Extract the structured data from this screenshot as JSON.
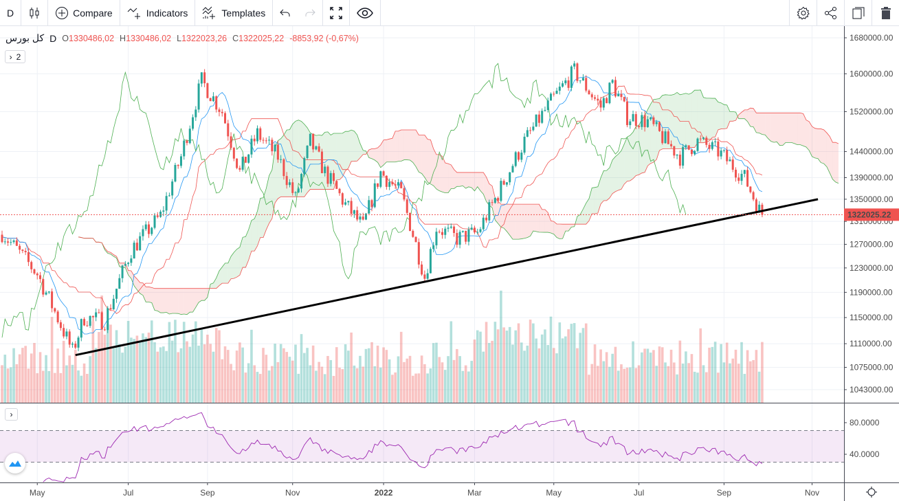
{
  "toolbar": {
    "interval": "D",
    "compare": "Compare",
    "indicators": "Indicators",
    "templates": "Templates"
  },
  "legend": {
    "symbol": "کل بورس",
    "interval": "D",
    "o_label": "O",
    "o": "1330486,02",
    "h_label": "H",
    "h": "1330486,02",
    "l_label": "L",
    "l": "1322023,26",
    "c_label": "C",
    "c": "1322025,22",
    "change": "-8853,92 (-0,67%)",
    "collapsed_count": "2"
  },
  "colors": {
    "up": "#26a69a",
    "down": "#ef5350",
    "tenkan": "#2196f3",
    "kijun": "#ef5350",
    "chikou": "#4caf50",
    "rsi": "#9c27b0"
  },
  "chart_data": {
    "type": "candlestick",
    "symbol": "کل بورس",
    "scale": "log",
    "price_ticks": [
      1680000,
      1600000,
      1520000,
      1440000,
      1390000,
      1350000,
      1310000,
      1270000,
      1230000,
      1190000,
      1150000,
      1110000,
      1075000,
      1043000
    ],
    "price_tick_labels": [
      "1680000.00",
      "1600000.00",
      "1520000.00",
      "1440000.00",
      "1390000.00",
      "1350000.00",
      "1310000.00",
      "1270000.00",
      "1230000.00",
      "1190000.00",
      "1150000.00",
      "1110000.00",
      "1075000.00",
      "1043000.00"
    ],
    "last_price": 1322025.22,
    "last_price_label": "1322025.22",
    "time_labels": [
      {
        "bar": 12,
        "label": "May"
      },
      {
        "bar": 43,
        "label": "Jul"
      },
      {
        "bar": 70,
        "label": "Sep"
      },
      {
        "bar": 99,
        "label": "Nov"
      },
      {
        "bar": 130,
        "label": "2022"
      },
      {
        "bar": 161,
        "label": "Mar"
      },
      {
        "bar": 188,
        "label": "May"
      },
      {
        "bar": 217,
        "label": "Jul"
      },
      {
        "bar": 246,
        "label": "Sep"
      },
      {
        "bar": 276,
        "label": "Nov"
      }
    ],
    "bars": 260,
    "close_keypoints": [
      [
        0,
        1290000
      ],
      [
        12,
        1220000
      ],
      [
        24,
        1098000
      ],
      [
        28,
        1150000
      ],
      [
        35,
        1145000
      ],
      [
        44,
        1260000
      ],
      [
        54,
        1320000
      ],
      [
        61,
        1430000
      ],
      [
        68,
        1585000
      ],
      [
        75,
        1520000
      ],
      [
        81,
        1400000
      ],
      [
        87,
        1475000
      ],
      [
        94,
        1430000
      ],
      [
        100,
        1350000
      ],
      [
        105,
        1460000
      ],
      [
        110,
        1400000
      ],
      [
        117,
        1340000
      ],
      [
        123,
        1300000
      ],
      [
        129,
        1400000
      ],
      [
        136,
        1360000
      ],
      [
        144,
        1215000
      ],
      [
        148,
        1300000
      ],
      [
        155,
        1280000
      ],
      [
        162,
        1290000
      ],
      [
        169,
        1360000
      ],
      [
        178,
        1460000
      ],
      [
        187,
        1540000
      ],
      [
        195,
        1605000
      ],
      [
        204,
        1530000
      ],
      [
        208,
        1580000
      ],
      [
        213,
        1510000
      ],
      [
        220,
        1500000
      ],
      [
        231,
        1430000
      ],
      [
        237,
        1460000
      ],
      [
        244,
        1440000
      ],
      [
        253,
        1390000
      ],
      [
        258,
        1330000
      ],
      [
        259,
        1322025
      ]
    ],
    "trendline": {
      "from": [
        25,
        1093000
      ],
      "to": [
        278,
        1350000
      ]
    },
    "indicators": [
      "Ichimoku Cloud (9,26,52,26)",
      "Volume",
      "RSI 14"
    ],
    "rsi": {
      "ticks": [
        80,
        40
      ],
      "tick_labels": [
        "80.0000",
        "40.0000"
      ],
      "band": [
        70,
        30
      ]
    },
    "time_axis_end": "Nov"
  }
}
